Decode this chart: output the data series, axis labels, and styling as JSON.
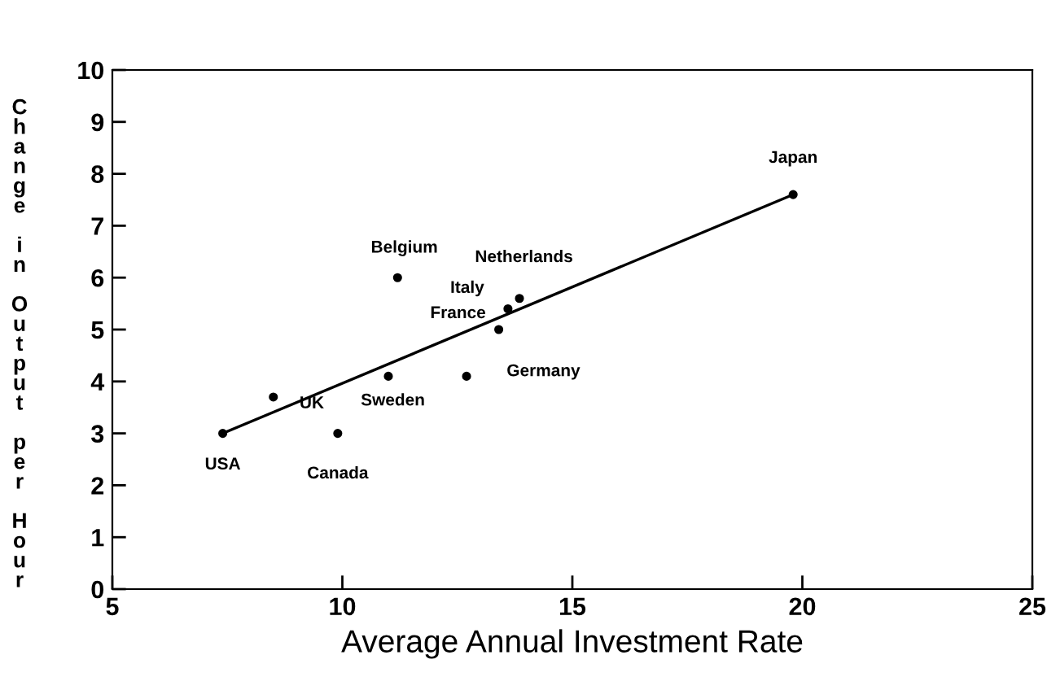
{
  "chart_data": {
    "type": "scatter",
    "xlabel": "Average Annual Investment Rate",
    "ylabel": "Change in Output per Hour",
    "xlim": [
      5,
      25
    ],
    "xticks": [
      5,
      10,
      15,
      20,
      25
    ],
    "ylim": [
      0,
      10
    ],
    "yticks": [
      0,
      1,
      2,
      3,
      4,
      5,
      6,
      7,
      8,
      9,
      10
    ],
    "grid": false,
    "legend": false,
    "series": [
      {
        "marker": "circle",
        "color": "#000000",
        "x": [
          7.4,
          8.5,
          9.9,
          11.0,
          11.2,
          12.7,
          13.4,
          13.6,
          13.85,
          19.8
        ],
        "values": [
          3.0,
          3.7,
          3.0,
          4.1,
          6.0,
          4.1,
          5.0,
          5.4,
          5.6,
          7.6
        ]
      },
      {
        "type": "line",
        "marker": "none",
        "color": "#000000",
        "x": [
          7.4,
          19.8
        ],
        "values": [
          3.0,
          7.6
        ]
      }
    ],
    "annotations": [
      {
        "text": "USA",
        "x": 7.4,
        "y": 3.0
      },
      {
        "text": "UK",
        "x": 8.5,
        "y": 3.7
      },
      {
        "text": "Canada",
        "x": 9.9,
        "y": 3.0
      },
      {
        "text": "Sweden",
        "x": 11.0,
        "y": 4.1
      },
      {
        "text": "Belgium",
        "x": 11.2,
        "y": 6.0
      },
      {
        "text": "Germany",
        "x": 12.7,
        "y": 4.1
      },
      {
        "text": "France",
        "x": 13.4,
        "y": 5.0
      },
      {
        "text": "Italy",
        "x": 13.6,
        "y": 5.4
      },
      {
        "text": "Netherlands",
        "x": 13.85,
        "y": 5.6
      },
      {
        "text": "Japan",
        "x": 19.8,
        "y": 7.6
      }
    ]
  }
}
